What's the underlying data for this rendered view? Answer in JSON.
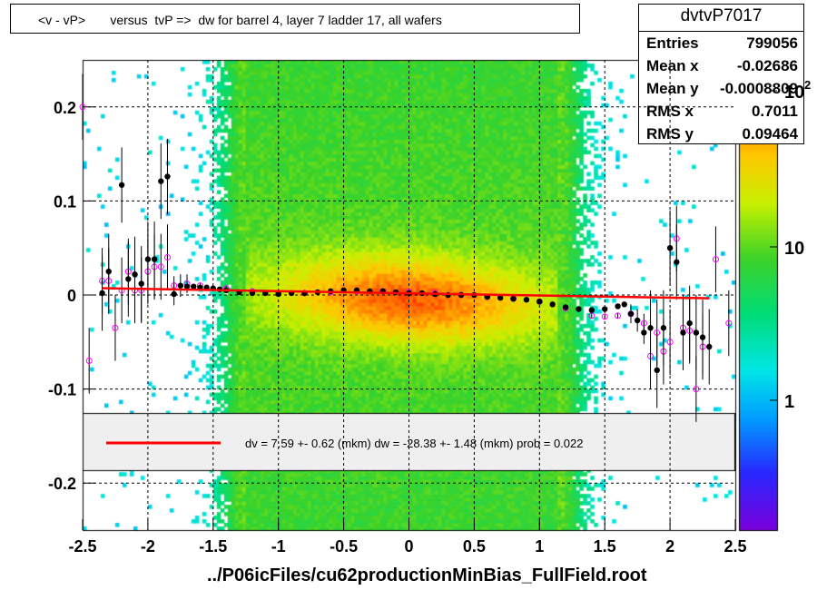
{
  "title": "<v - vP>       versus  tvP =>  dw for barrel 4, layer 7 ladder 17, all wafers",
  "stats": {
    "name": "dvtvP7017",
    "rows": [
      {
        "label": "Entries",
        "value": "799056"
      },
      {
        "label": "Mean x",
        "value": "-0.02686"
      },
      {
        "label": "Mean y",
        "value": "-0.0008809"
      },
      {
        "label": "RMS x",
        "value": "0.7011"
      },
      {
        "label": "RMS y",
        "value": "0.09464"
      }
    ]
  },
  "footer": "../P06icFiles/cu62productionMinBias_FullField.root",
  "legend": {
    "text": "dv =    7.59 +-  0.62 (mkm) dw =  -28.38 +-  1.48 (mkm) prob = 0.022"
  },
  "colors": {
    "fit_line": "#ff0000",
    "profile_points": "#000000",
    "profile_open": "#ff00ff",
    "legend_bg": "#efefef"
  },
  "chart_data": {
    "type": "heatmap",
    "title": "<v - vP>       versus  tvP =>  dw for barrel 4, layer 7 ladder 17, all wafers",
    "xlabel": "",
    "ylabel": "",
    "xlim": [
      -2.5,
      2.5
    ],
    "ylim": [
      -0.25,
      0.25
    ],
    "x_ticks": [
      "-2.5",
      "-2",
      "-1.5",
      "-1",
      "-0.5",
      "0",
      "0.5",
      "1",
      "1.5",
      "2",
      "2.5"
    ],
    "y_ticks": [
      "-0.2",
      "-0.1",
      "0",
      "0.1",
      "0.2"
    ],
    "z_scale": "log",
    "z_ticks": [
      "1",
      "10",
      "10^2"
    ],
    "grid": true,
    "fit": {
      "x": [
        -2.35,
        2.3
      ],
      "y": [
        0.0072,
        -0.0035
      ]
    },
    "profile_filled": {
      "x": [
        -2.35,
        -2.3,
        -2.2,
        -2.15,
        -2.1,
        -2.05,
        -2.0,
        -1.95,
        -1.9,
        -1.85,
        -1.8,
        -1.75,
        -1.7,
        -1.65,
        -1.6,
        -1.55,
        -1.5,
        -1.45,
        -1.4,
        -1.3,
        -1.2,
        -1.1,
        -1.0,
        -0.9,
        -0.8,
        -0.7,
        -0.6,
        -0.5,
        -0.4,
        -0.3,
        -0.2,
        -0.1,
        0.0,
        0.1,
        0.2,
        0.3,
        0.4,
        0.5,
        0.6,
        0.7,
        0.8,
        0.9,
        1.0,
        1.1,
        1.2,
        1.3,
        1.4,
        1.5,
        1.6,
        1.65,
        1.7,
        1.75,
        1.8,
        1.85,
        1.9,
        1.95,
        2.0,
        2.05,
        2.1,
        2.15,
        2.2,
        2.25,
        2.3
      ],
      "y": [
        0.002,
        0.025,
        0.117,
        0.017,
        0.022,
        0.012,
        0.038,
        0.038,
        0.121,
        0.126,
        0.001,
        0.01,
        0.009,
        0.009,
        0.008,
        0.008,
        0.007,
        0.006,
        0.005,
        0.003,
        0.002,
        0.002,
        0.001,
        0.002,
        0.002,
        0.003,
        0.004,
        0.005,
        0.005,
        0.004,
        0.004,
        0.003,
        0.002,
        0.002,
        0.001,
        0.0,
        0.0,
        0.0,
        -0.002,
        -0.003,
        -0.004,
        -0.005,
        -0.007,
        -0.01,
        -0.013,
        -0.015,
        -0.016,
        -0.015,
        -0.012,
        -0.01,
        -0.02,
        -0.027,
        -0.04,
        -0.035,
        -0.08,
        -0.035,
        0.05,
        0.035,
        -0.04,
        -0.03,
        -0.04,
        -0.045,
        -0.055
      ]
    },
    "profile_open": {
      "x": [
        -2.5,
        -2.45,
        -2.35,
        -2.3,
        -2.25,
        -2.2,
        -2.15,
        -2.1,
        -2.05,
        -2.0,
        -1.95,
        -1.9,
        -1.85,
        -1.8,
        -1.7,
        -1.6,
        -1.4,
        -1.2,
        -1.0,
        -0.8,
        -0.6,
        -0.4,
        -0.2,
        0.0,
        0.2,
        0.4,
        0.6,
        0.8,
        1.0,
        1.2,
        1.4,
        1.5,
        1.6,
        1.7,
        1.8,
        1.85,
        1.9,
        1.95,
        2.0,
        2.05,
        2.1,
        2.15,
        2.2,
        2.25,
        2.35,
        2.45
      ],
      "y": [
        0.2,
        -0.07,
        0.015,
        0.015,
        -0.035,
        0.005,
        0.025,
        0.005,
        0.005,
        0.025,
        0.03,
        0.03,
        0.04,
        0.01,
        0.012,
        0.01,
        0.007,
        0.004,
        0.002,
        0.002,
        0.003,
        0.004,
        0.004,
        0.003,
        0.002,
        0.0,
        -0.002,
        -0.004,
        -0.007,
        -0.014,
        -0.022,
        -0.023,
        -0.022,
        -0.02,
        -0.03,
        -0.065,
        -0.04,
        -0.06,
        -0.05,
        0.06,
        -0.035,
        -0.038,
        -0.1,
        -0.055,
        0.038,
        -0.03
      ]
    }
  }
}
